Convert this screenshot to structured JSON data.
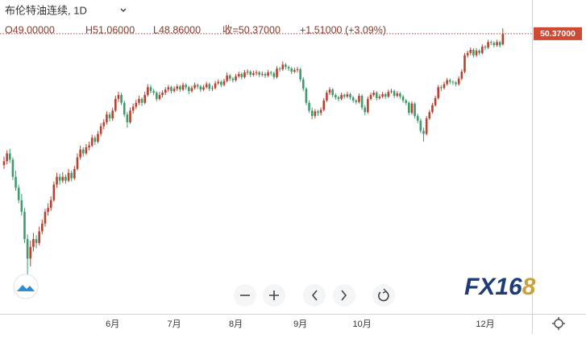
{
  "chart_data": {
    "type": "candlestick",
    "title": "布伦特油连续, 1D",
    "ohlc_legend": [
      "O49.00000",
      "H51.06000",
      "L48.86000",
      "收=50.37000",
      "+1.51000 (+3.09%)"
    ],
    "last_price_label": "50.37000",
    "up_color": "#b8412f",
    "down_color": "#3f9a6c",
    "ylim": [
      14.4,
      54.7
    ],
    "categories": [
      null,
      null,
      null,
      null,
      null,
      null,
      null,
      null,
      null,
      null,
      null,
      null,
      null,
      null,
      null,
      null,
      null,
      null,
      null,
      null,
      null,
      null,
      null,
      null,
      null,
      null,
      null,
      null,
      null,
      null,
      null,
      null,
      null,
      null,
      null,
      null,
      null,
      "6月",
      null,
      null,
      null,
      null,
      null,
      null,
      null,
      null,
      null,
      null,
      null,
      null,
      null,
      null,
      null,
      null,
      null,
      null,
      null,
      null,
      "7月",
      null,
      null,
      null,
      null,
      null,
      null,
      null,
      null,
      null,
      null,
      null,
      null,
      null,
      null,
      null,
      null,
      null,
      null,
      null,
      null,
      "8月",
      null,
      null,
      null,
      null,
      null,
      null,
      null,
      null,
      null,
      null,
      null,
      null,
      null,
      null,
      null,
      null,
      null,
      null,
      null,
      null,
      null,
      "9月",
      null,
      null,
      null,
      null,
      null,
      null,
      null,
      null,
      null,
      null,
      null,
      null,
      null,
      null,
      null,
      null,
      null,
      null,
      null,
      null,
      "10月",
      null,
      null,
      null,
      null,
      null,
      null,
      null,
      null,
      null,
      null,
      null,
      null,
      null,
      null,
      null,
      null,
      null,
      null,
      null,
      null,
      null,
      null,
      null,
      null,
      null,
      null,
      null,
      null,
      null,
      null,
      null,
      null,
      null,
      null,
      null,
      null,
      null,
      null,
      null,
      null,
      null,
      "12月",
      null,
      null,
      null,
      null,
      null,
      null
    ],
    "candles": [
      [
        33.5,
        34.6,
        33.0,
        34.0
      ],
      [
        34.0,
        35.4,
        33.6,
        35.0
      ],
      [
        35.0,
        35.6,
        33.8,
        34.2
      ],
      [
        34.2,
        34.5,
        31.6,
        32.0
      ],
      [
        32.0,
        32.8,
        30.2,
        30.6
      ],
      [
        30.6,
        31.0,
        28.6,
        29.0
      ],
      [
        29.0,
        29.8,
        27.0,
        27.5
      ],
      [
        27.5,
        28.0,
        23.5,
        24.0
      ],
      [
        24.0,
        24.6,
        19.3,
        21.5
      ],
      [
        21.5,
        23.8,
        20.5,
        23.0
      ],
      [
        23.0,
        24.8,
        22.4,
        24.0
      ],
      [
        24.0,
        24.5,
        22.8,
        23.5
      ],
      [
        23.5,
        25.6,
        23.2,
        25.0
      ],
      [
        25.0,
        26.5,
        24.6,
        26.0
      ],
      [
        26.0,
        27.9,
        25.6,
        27.5
      ],
      [
        27.5,
        28.6,
        27.0,
        28.0
      ],
      [
        28.0,
        29.5,
        27.6,
        29.0
      ],
      [
        29.0,
        31.4,
        28.8,
        31.0
      ],
      [
        31.0,
        32.5,
        30.6,
        32.0
      ],
      [
        32.0,
        32.4,
        31.0,
        31.5
      ],
      [
        31.5,
        32.6,
        31.2,
        32.0
      ],
      [
        32.0,
        32.3,
        31.1,
        31.5
      ],
      [
        31.5,
        33.0,
        31.3,
        32.5
      ],
      [
        32.5,
        32.8,
        31.4,
        31.8
      ],
      [
        31.8,
        33.4,
        31.6,
        33.0
      ],
      [
        33.0,
        35.0,
        32.8,
        34.5
      ],
      [
        34.5,
        36.0,
        34.2,
        35.5
      ],
      [
        35.5,
        35.8,
        34.6,
        35.0
      ],
      [
        35.0,
        36.2,
        34.8,
        35.8
      ],
      [
        35.8,
        36.5,
        35.4,
        36.0
      ],
      [
        36.0,
        37.4,
        35.8,
        37.0
      ],
      [
        37.0,
        37.3,
        36.1,
        36.5
      ],
      [
        36.5,
        37.9,
        36.3,
        37.5
      ],
      [
        37.5,
        38.9,
        37.2,
        38.5
      ],
      [
        38.5,
        39.4,
        38.1,
        39.0
      ],
      [
        39.0,
        40.4,
        38.7,
        40.0
      ],
      [
        40.0,
        40.3,
        39.1,
        39.5
      ],
      [
        39.5,
        40.9,
        39.2,
        40.5
      ],
      [
        40.5,
        42.4,
        40.3,
        42.0
      ],
      [
        42.0,
        42.9,
        41.6,
        42.5
      ],
      [
        42.5,
        42.8,
        41.2,
        41.5
      ],
      [
        41.5,
        41.8,
        39.7,
        40.0
      ],
      [
        40.0,
        40.3,
        38.3,
        39.0
      ],
      [
        39.0,
        40.9,
        38.8,
        40.5
      ],
      [
        40.5,
        41.4,
        40.1,
        41.0
      ],
      [
        41.0,
        41.9,
        40.7,
        41.5
      ],
      [
        41.5,
        42.4,
        41.2,
        42.0
      ],
      [
        42.0,
        42.2,
        41.1,
        41.5
      ],
      [
        41.5,
        42.9,
        41.3,
        42.5
      ],
      [
        42.5,
        43.9,
        42.3,
        43.5
      ],
      [
        43.5,
        43.8,
        42.7,
        43.0
      ],
      [
        43.0,
        43.3,
        42.5,
        42.8
      ],
      [
        42.8,
        43.0,
        41.7,
        42.0
      ],
      [
        42.0,
        42.9,
        41.8,
        42.5
      ],
      [
        42.5,
        43.1,
        42.2,
        42.8
      ],
      [
        42.8,
        43.5,
        42.5,
        43.2
      ],
      [
        43.2,
        43.8,
        42.9,
        43.5
      ],
      [
        43.5,
        43.7,
        42.7,
        43.0
      ],
      [
        43.0,
        43.6,
        42.8,
        43.3
      ],
      [
        43.3,
        43.9,
        43.0,
        43.6
      ],
      [
        43.6,
        43.8,
        42.9,
        43.2
      ],
      [
        43.2,
        44.1,
        43.0,
        43.8
      ],
      [
        43.8,
        44.0,
        43.2,
        43.5
      ],
      [
        43.5,
        43.7,
        42.6,
        43.0
      ],
      [
        43.0,
        43.7,
        42.8,
        43.4
      ],
      [
        43.4,
        44.1,
        43.2,
        43.8
      ],
      [
        43.8,
        44.0,
        43.3,
        43.6
      ],
      [
        43.6,
        43.8,
        42.9,
        43.2
      ],
      [
        43.2,
        43.8,
        43.0,
        43.5
      ],
      [
        43.5,
        44.2,
        43.3,
        43.9
      ],
      [
        43.9,
        44.1,
        43.0,
        43.3
      ],
      [
        43.3,
        43.7,
        43.0,
        43.4
      ],
      [
        43.4,
        44.3,
        43.2,
        44.0
      ],
      [
        44.0,
        44.5,
        43.8,
        44.2
      ],
      [
        44.2,
        44.4,
        43.5,
        43.8
      ],
      [
        43.8,
        44.6,
        43.6,
        44.3
      ],
      [
        44.3,
        45.4,
        44.1,
        45.0
      ],
      [
        45.0,
        45.2,
        44.3,
        44.6
      ],
      [
        44.6,
        44.8,
        44.1,
        44.4
      ],
      [
        44.4,
        45.2,
        44.2,
        44.9
      ],
      [
        44.9,
        45.5,
        44.7,
        45.2
      ],
      [
        45.2,
        45.4,
        44.5,
        44.8
      ],
      [
        44.8,
        45.7,
        44.6,
        45.4
      ],
      [
        45.4,
        45.8,
        45.1,
        45.5
      ],
      [
        45.5,
        45.7,
        44.8,
        45.1
      ],
      [
        45.1,
        45.6,
        44.9,
        45.3
      ],
      [
        45.3,
        45.7,
        45.0,
        45.4
      ],
      [
        45.4,
        45.6,
        44.8,
        45.1
      ],
      [
        45.1,
        45.5,
        44.9,
        45.2
      ],
      [
        45.2,
        45.4,
        44.7,
        45.0
      ],
      [
        45.0,
        45.7,
        44.8,
        45.4
      ],
      [
        45.4,
        45.6,
        45.0,
        45.3
      ],
      [
        45.3,
        45.5,
        44.5,
        44.8
      ],
      [
        44.8,
        46.2,
        44.6,
        45.9
      ],
      [
        45.9,
        46.1,
        45.5,
        45.8
      ],
      [
        45.8,
        46.8,
        45.6,
        46.4
      ],
      [
        46.4,
        46.6,
        45.8,
        46.1
      ],
      [
        46.1,
        46.3,
        45.6,
        45.9
      ],
      [
        45.9,
        46.1,
        45.2,
        45.5
      ],
      [
        45.5,
        46.0,
        45.3,
        45.7
      ],
      [
        45.7,
        46.1,
        45.4,
        45.8
      ],
      [
        45.8,
        46.0,
        44.2,
        44.5
      ],
      [
        44.5,
        44.8,
        43.0,
        43.3
      ],
      [
        43.3,
        43.5,
        41.2,
        41.5
      ],
      [
        41.5,
        41.8,
        40.2,
        40.5
      ],
      [
        40.5,
        40.9,
        39.4,
        39.8
      ],
      [
        39.8,
        40.7,
        39.5,
        40.4
      ],
      [
        40.4,
        40.6,
        39.8,
        40.2
      ],
      [
        40.2,
        40.9,
        39.9,
        40.6
      ],
      [
        40.6,
        42.1,
        40.4,
        41.8
      ],
      [
        41.8,
        43.1,
        41.6,
        42.8
      ],
      [
        42.8,
        43.5,
        42.5,
        43.2
      ],
      [
        43.2,
        43.4,
        42.2,
        42.5
      ],
      [
        42.5,
        42.7,
        41.9,
        42.2
      ],
      [
        42.2,
        42.4,
        41.7,
        42.0
      ],
      [
        42.0,
        42.8,
        41.8,
        42.5
      ],
      [
        42.5,
        42.7,
        42.0,
        42.3
      ],
      [
        42.3,
        42.9,
        42.1,
        42.6
      ],
      [
        42.6,
        42.8,
        41.9,
        42.2
      ],
      [
        42.2,
        42.4,
        41.5,
        41.8
      ],
      [
        41.8,
        42.0,
        41.3,
        41.6
      ],
      [
        41.6,
        42.7,
        41.4,
        42.4
      ],
      [
        42.4,
        42.6,
        40.6,
        40.9
      ],
      [
        40.9,
        41.2,
        39.9,
        40.3
      ],
      [
        40.3,
        42.3,
        40.1,
        42.0
      ],
      [
        42.0,
        42.8,
        41.8,
        42.5
      ],
      [
        42.5,
        43.1,
        42.3,
        42.8
      ],
      [
        42.8,
        43.0,
        41.8,
        42.1
      ],
      [
        42.1,
        42.6,
        41.9,
        42.3
      ],
      [
        42.3,
        42.9,
        42.1,
        42.6
      ],
      [
        42.6,
        42.8,
        42.0,
        42.3
      ],
      [
        42.3,
        43.2,
        42.1,
        42.9
      ],
      [
        42.9,
        43.3,
        42.7,
        43.0
      ],
      [
        43.0,
        43.2,
        42.1,
        42.4
      ],
      [
        42.4,
        43.0,
        42.2,
        42.7
      ],
      [
        42.7,
        42.9,
        42.0,
        42.3
      ],
      [
        42.3,
        42.5,
        41.5,
        41.8
      ],
      [
        41.8,
        42.0,
        41.2,
        41.5
      ],
      [
        41.5,
        41.7,
        39.9,
        40.2
      ],
      [
        40.2,
        41.7,
        40.0,
        41.4
      ],
      [
        41.4,
        41.6,
        39.5,
        39.8
      ],
      [
        39.8,
        40.1,
        38.9,
        39.2
      ],
      [
        39.2,
        39.5,
        37.6,
        37.9
      ],
      [
        37.9,
        38.3,
        36.5,
        37.5
      ],
      [
        37.5,
        39.8,
        37.3,
        39.5
      ],
      [
        39.5,
        40.6,
        39.3,
        40.3
      ],
      [
        40.3,
        41.5,
        40.1,
        41.2
      ],
      [
        41.2,
        42.4,
        41.0,
        42.1
      ],
      [
        42.1,
        43.8,
        41.9,
        43.5
      ],
      [
        43.5,
        43.8,
        43.0,
        43.4
      ],
      [
        43.4,
        44.2,
        43.2,
        43.9
      ],
      [
        43.9,
        44.7,
        43.7,
        44.4
      ],
      [
        44.4,
        44.6,
        43.9,
        44.2
      ],
      [
        44.2,
        44.4,
        43.8,
        44.1
      ],
      [
        44.1,
        44.3,
        43.6,
        43.9
      ],
      [
        43.9,
        44.9,
        43.7,
        44.6
      ],
      [
        44.6,
        45.8,
        44.4,
        45.5
      ],
      [
        45.5,
        47.9,
        45.3,
        47.6
      ],
      [
        47.6,
        48.2,
        47.3,
        47.9
      ],
      [
        47.9,
        48.6,
        47.6,
        48.3
      ],
      [
        48.3,
        48.5,
        47.3,
        47.6
      ],
      [
        47.6,
        48.5,
        47.4,
        48.2
      ],
      [
        48.2,
        48.4,
        47.6,
        47.9
      ],
      [
        47.9,
        49.0,
        47.7,
        48.7
      ],
      [
        48.7,
        48.9,
        48.3,
        48.6
      ],
      [
        48.6,
        49.6,
        48.4,
        49.3
      ],
      [
        49.3,
        49.5,
        48.9,
        49.2
      ],
      [
        49.2,
        49.4,
        48.6,
        48.9
      ],
      [
        48.9,
        49.6,
        48.7,
        49.3
      ],
      [
        49.3,
        49.5,
        48.6,
        48.86
      ],
      [
        49.0,
        51.06,
        48.86,
        50.37
      ]
    ]
  },
  "logo": {
    "main": "FX16",
    "accent": "8"
  }
}
